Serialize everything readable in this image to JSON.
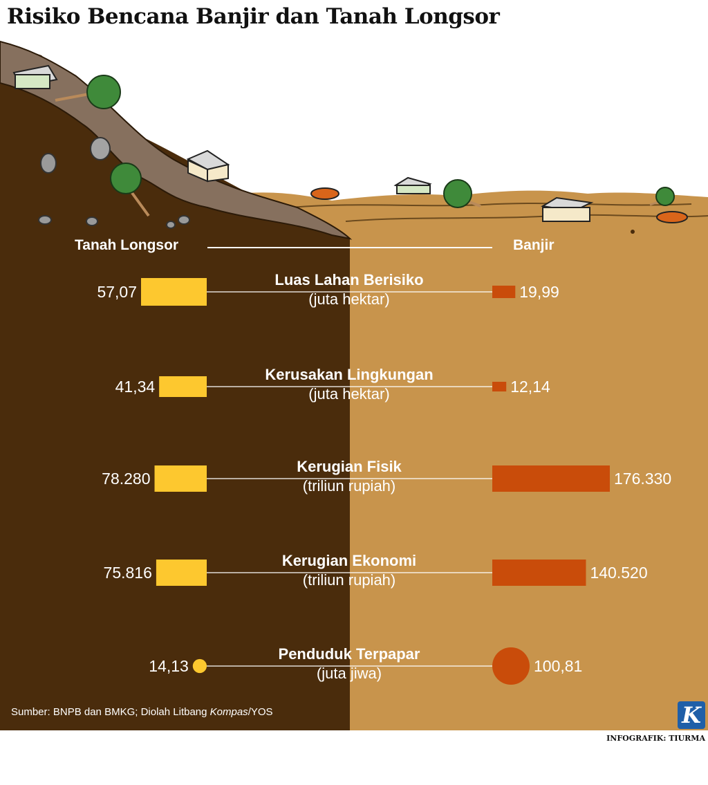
{
  "title": "Risiko Bencana Banjir dan Tanah Longsor",
  "left_header": "Tanah Longsor",
  "right_header": "Banjir",
  "source_prefix": "Sumber: BNPB dan BMKG; Diolah Litbang ",
  "source_italic": "Kompas",
  "source_suffix": "/YOS",
  "credit": "INFOGRAFIK: TIURMA",
  "logo_letter": "K",
  "colors": {
    "dark_soil": "#4a2c0c",
    "light_soil": "#c8944c",
    "left_bar": "#fdc82f",
    "right_bar": "#c94c0a"
  },
  "chart_data": {
    "type": "bar",
    "title": "Risiko Bencana Banjir dan Tanah Longsor",
    "series_names": [
      "Tanah Longsor",
      "Banjir"
    ],
    "categories": [
      {
        "name": "Luas Lahan Berisiko",
        "unit": "(juta hektar)",
        "left": 57.07,
        "right": 19.99,
        "left_label": "57,07",
        "right_label": "19,99",
        "mark": "bar"
      },
      {
        "name": "Kerusakan Lingkungan",
        "unit": "(juta hektar)",
        "left": 41.34,
        "right": 12.14,
        "left_label": "41,34",
        "right_label": "12,14",
        "mark": "bar"
      },
      {
        "name": "Kerugian Fisik",
        "unit": "(triliun rupiah)",
        "left": 78280,
        "right": 176330,
        "left_label": "78.280",
        "right_label": "176.330",
        "mark": "bar"
      },
      {
        "name": "Kerugian Ekonomi",
        "unit": "(triliun rupiah)",
        "left": 75816,
        "right": 140520,
        "left_label": "75.816",
        "right_label": "140.520",
        "mark": "bar"
      },
      {
        "name": "Penduduk Terpapar",
        "unit": "(juta jiwa)",
        "left": 14.13,
        "right": 100.81,
        "left_label": "14,13",
        "right_label": "100,81",
        "mark": "circle"
      }
    ]
  }
}
